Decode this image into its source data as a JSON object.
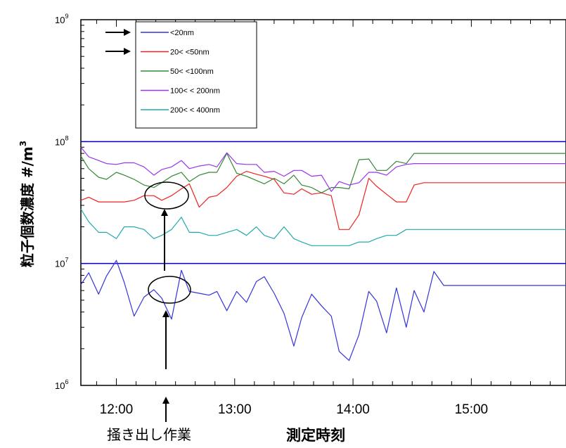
{
  "chart_data": {
    "type": "line",
    "xlabel": "測定時刻",
    "ylabel": "粒子個数濃度 #/m",
    "ylabel_sup": "3",
    "yscale": "log",
    "ylim": [
      1000000,
      1000000000
    ],
    "xlim": [
      "11:42",
      "15:48"
    ],
    "x_ticks": [
      "12:00",
      "13:00",
      "14:00",
      "15:00"
    ],
    "y_ticks": [
      {
        "base": "10",
        "exp": "6",
        "value": 1000000
      },
      {
        "base": "10",
        "exp": "7",
        "value": 10000000
      },
      {
        "base": "10",
        "exp": "8",
        "value": 100000000
      },
      {
        "base": "10",
        "exp": "9",
        "value": 1000000000
      }
    ],
    "hlines": [
      10000000,
      100000000
    ],
    "hline_color": "#0000cc",
    "legend_position": "top-left",
    "x": [
      "11:42",
      "11:46",
      "11:51",
      "11:55",
      "12:00",
      "12:04",
      "12:09",
      "12:14",
      "12:19",
      "12:23",
      "12:28",
      "12:33",
      "12:37",
      "12:42",
      "12:47",
      "12:51",
      "12:56",
      "13:01",
      "13:06",
      "13:11",
      "13:15",
      "13:20",
      "13:25",
      "13:30",
      "13:34",
      "13:39",
      "13:44",
      "13:49",
      "13:53",
      "13:58",
      "14:03",
      "14:08",
      "14:12",
      "14:17",
      "14:22",
      "14:27",
      "14:31",
      "14:36",
      "14:41",
      "14:46",
      "14:50",
      "14:55",
      "15:00",
      "15:05",
      "15:09",
      "15:14",
      "15:19",
      "15:24",
      "15:28",
      "15:33",
      "15:38",
      "15:43",
      "15:48"
    ],
    "series": [
      {
        "name": "<20nm",
        "color": "#3333dd",
        "values": [
          6700000.0,
          8400000.0,
          5600000.0,
          7900000.0,
          10600000.0,
          7000000.0,
          3700000.0,
          5300000.0,
          6100000.0,
          5200000.0,
          3500000.0,
          8800000.0,
          5900000.0,
          5700000.0,
          5500000.0,
          5900000.0,
          4100000.0,
          5900000.0,
          4800000.0,
          7100000.0,
          7800000.0,
          5700000.0,
          3900000.0,
          2100000.0,
          3600000.0,
          5600000.0,
          4500000.0,
          3700000.0,
          1900000.0,
          1600000.0,
          2600000.0,
          5900000.0,
          4900000.0,
          2700000.0,
          6300000.0,
          3000000.0,
          6000000.0,
          4000000.0,
          8600000.0,
          6600000.0,
          6600000.0,
          6600000.0,
          6600000.0,
          6600000.0,
          6600000.0,
          6600000.0,
          6600000.0,
          6600000.0,
          6600000.0,
          6600000.0,
          6600000.0,
          6600000.0,
          6600000.0
        ]
      },
      {
        "name": "20< <50nm",
        "color": "#ee2222",
        "values": [
          33000000.0,
          35000000.0,
          32000000.0,
          32000000.0,
          32000000.0,
          32000000.0,
          33000000.0,
          36000000.0,
          36000000.0,
          33000000.0,
          36000000.0,
          41000000.0,
          45000000.0,
          29000000.0,
          35000000.0,
          36000000.0,
          42000000.0,
          52000000.0,
          57000000.0,
          54000000.0,
          52000000.0,
          49000000.0,
          38000000.0,
          37000000.0,
          41000000.0,
          37000000.0,
          38000000.0,
          36000000.0,
          19000000.0,
          19000000.0,
          25000000.0,
          50000000.0,
          43000000.0,
          37000000.0,
          32000000.0,
          32000000.0,
          44000000.0,
          46000000.0,
          46000000.0,
          46000000.0,
          46000000.0,
          46000000.0,
          46000000.0,
          46000000.0,
          46000000.0,
          46000000.0,
          46000000.0,
          46000000.0,
          46000000.0,
          46000000.0,
          46000000.0,
          46000000.0,
          46000000.0
        ]
      },
      {
        "name": "50< <100nm",
        "color": "#338833",
        "values": [
          76000000.0,
          60000000.0,
          51000000.0,
          49000000.0,
          56000000.0,
          53000000.0,
          49000000.0,
          44000000.0,
          42000000.0,
          46000000.0,
          52000000.0,
          56000000.0,
          47000000.0,
          53000000.0,
          56000000.0,
          56000000.0,
          80000000.0,
          55000000.0,
          52000000.0,
          48000000.0,
          45000000.0,
          50000000.0,
          45000000.0,
          53000000.0,
          44000000.0,
          42000000.0,
          38000000.0,
          42000000.0,
          42000000.0,
          41000000.0,
          71000000.0,
          72000000.0,
          58000000.0,
          58000000.0,
          69000000.0,
          66000000.0,
          80000000.0,
          80000000.0,
          80000000.0,
          80000000.0,
          80000000.0,
          80000000.0,
          80000000.0,
          80000000.0,
          80000000.0,
          80000000.0,
          80000000.0,
          80000000.0,
          80000000.0,
          80000000.0,
          80000000.0,
          80000000.0,
          80000000.0
        ]
      },
      {
        "name": "100< < 200nm",
        "color": "#9933ee",
        "values": [
          90000000.0,
          75000000.0,
          70000000.0,
          66000000.0,
          65000000.0,
          67000000.0,
          67000000.0,
          62000000.0,
          53000000.0,
          59000000.0,
          62000000.0,
          70000000.0,
          60000000.0,
          63000000.0,
          65000000.0,
          62000000.0,
          81000000.0,
          66000000.0,
          65000000.0,
          65000000.0,
          56000000.0,
          57000000.0,
          52000000.0,
          58000000.0,
          58000000.0,
          52000000.0,
          53000000.0,
          39000000.0,
          47000000.0,
          44000000.0,
          46000000.0,
          56000000.0,
          56000000.0,
          53000000.0,
          62000000.0,
          65000000.0,
          66000000.0,
          66000000.0,
          66000000.0,
          66000000.0,
          66000000.0,
          66000000.0,
          66000000.0,
          66000000.0,
          66000000.0,
          66000000.0,
          66000000.0,
          66000000.0,
          66000000.0,
          66000000.0,
          66000000.0,
          66000000.0,
          66000000.0
        ]
      },
      {
        "name": "200< < 400nm",
        "color": "#22aaaa",
        "values": [
          28000000.0,
          22000000.0,
          18000000.0,
          18000000.0,
          16000000.0,
          20000000.0,
          20000000.0,
          19000000.0,
          16000000.0,
          17000000.0,
          19000000.0,
          24000000.0,
          18000000.0,
          18000000.0,
          17000000.0,
          17000000.0,
          18000000.0,
          19000000.0,
          17000000.0,
          20000000.0,
          17000000.0,
          16000000.0,
          20000000.0,
          16000000.0,
          15000000.0,
          14000000.0,
          14000000.0,
          14000000.0,
          14000000.0,
          14000000.0,
          15000000.0,
          15000000.0,
          16000000.0,
          17000000.0,
          17000000.0,
          19000000.0,
          19000000.0,
          19000000.0,
          19000000.0,
          19000000.0,
          19000000.0,
          19000000.0,
          19000000.0,
          19000000.0,
          19000000.0,
          19000000.0,
          19000000.0,
          19000000.0,
          19000000.0,
          19000000.0,
          19000000.0,
          19000000.0,
          19000000.0
        ]
      }
    ],
    "annotation": {
      "label": "掻き出し作業",
      "x": "12:19"
    }
  }
}
